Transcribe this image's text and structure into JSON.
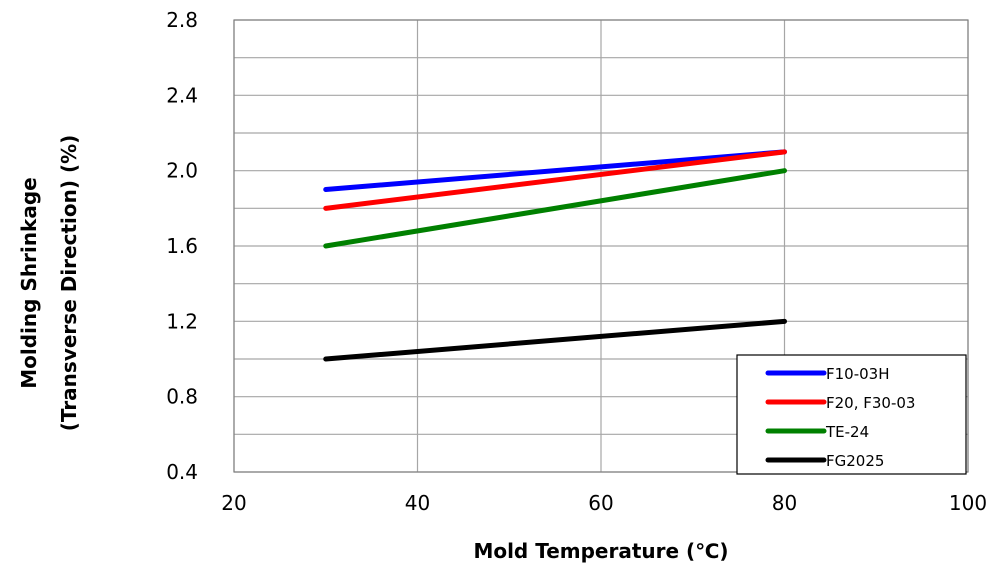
{
  "chart_data": {
    "type": "line",
    "xlabel": "Mold Temperature (℃)",
    "ylabel_lines": [
      "Molding Shrinkage",
      "(Transverse Direction) (%)"
    ],
    "xlim": [
      20,
      100
    ],
    "ylim": [
      0.4,
      2.8
    ],
    "x_ticks": [
      "20",
      "40",
      "60",
      "80",
      "100"
    ],
    "y_ticks": [
      "0.4",
      "0.8",
      "1.2",
      "1.6",
      "2.0",
      "2.4",
      "2.8"
    ],
    "grid": true,
    "legend_position": "bottom-right",
    "series": [
      {
        "name": "F10-03H",
        "color": "#0000ff",
        "x": [
          30,
          80
        ],
        "y": [
          1.9,
          2.1
        ]
      },
      {
        "name": "F20, F30-03",
        "color": "#ff0000",
        "x": [
          30,
          80
        ],
        "y": [
          1.8,
          2.1
        ]
      },
      {
        "name": "TE-24",
        "color": "#008000",
        "x": [
          30,
          80
        ],
        "y": [
          1.6,
          2.0
        ]
      },
      {
        "name": "FG2025",
        "color": "#000000",
        "x": [
          30,
          80
        ],
        "y": [
          1.0,
          1.2
        ]
      }
    ]
  }
}
